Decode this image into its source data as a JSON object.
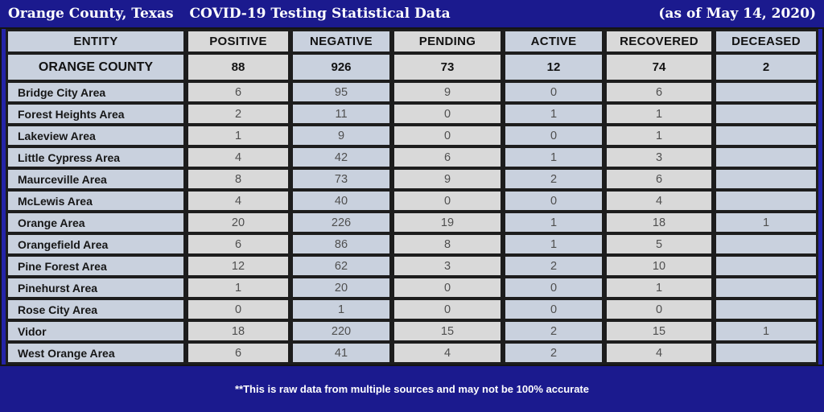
{
  "title": {
    "left_primary": "Orange County, Texas",
    "left_secondary": "COVID-19 Testing Statistical Data",
    "right": "(as of  May 14, 2020)"
  },
  "footer": {
    "note": "**This is raw data from multiple sources and may not be 100% accurate"
  },
  "colors": {
    "background_navy": "#1b1a8e",
    "frame_navy": "#2424a8",
    "grid_black": "#1d1d1d",
    "cell_blue": "#c9d1de",
    "cell_grey": "#d9d9d9",
    "text_dark": "#121212",
    "text_value_grey": "#4f4f4f",
    "text_white": "#ffffff"
  },
  "chart_data": {
    "type": "table",
    "title": "Orange County, Texas COVID-19 Testing Statistical Data (as of May 14, 2020)",
    "columns": [
      "ENTITY",
      "POSITIVE",
      "NEGATIVE",
      "PENDING",
      "ACTIVE",
      "RECOVERED",
      "DECEASED"
    ],
    "total_row": {
      "entity": "ORANGE COUNTY",
      "values": [
        "88",
        "926",
        "73",
        "12",
        "74",
        "2"
      ]
    },
    "rows": [
      {
        "entity": "Bridge City Area",
        "values": [
          "6",
          "95",
          "9",
          "0",
          "6",
          ""
        ]
      },
      {
        "entity": "Forest Heights Area",
        "values": [
          "2",
          "11",
          "0",
          "1",
          "1",
          ""
        ]
      },
      {
        "entity": "Lakeview Area",
        "values": [
          "1",
          "9",
          "0",
          "0",
          "1",
          ""
        ]
      },
      {
        "entity": "Little Cypress Area",
        "values": [
          "4",
          "42",
          "6",
          "1",
          "3",
          ""
        ]
      },
      {
        "entity": "Maurceville Area",
        "values": [
          "8",
          "73",
          "9",
          "2",
          "6",
          ""
        ]
      },
      {
        "entity": "McLewis Area",
        "values": [
          "4",
          "40",
          "0",
          "0",
          "4",
          ""
        ]
      },
      {
        "entity": "Orange Area",
        "values": [
          "20",
          "226",
          "19",
          "1",
          "18",
          "1"
        ]
      },
      {
        "entity": "Orangefield Area",
        "values": [
          "6",
          "86",
          "8",
          "1",
          "5",
          ""
        ]
      },
      {
        "entity": "Pine Forest Area",
        "values": [
          "12",
          "62",
          "3",
          "2",
          "10",
          ""
        ]
      },
      {
        "entity": "Pinehurst Area",
        "values": [
          "1",
          "20",
          "0",
          "0",
          "1",
          ""
        ]
      },
      {
        "entity": "Rose City Area",
        "values": [
          "0",
          "1",
          "0",
          "0",
          "0",
          ""
        ]
      },
      {
        "entity": "Vidor",
        "values": [
          "18",
          "220",
          "15",
          "2",
          "15",
          "1"
        ]
      },
      {
        "entity": "West Orange Area",
        "values": [
          "6",
          "41",
          "4",
          "2",
          "4",
          ""
        ]
      }
    ],
    "layout": {
      "grid": true,
      "column_tint_alternation": [
        "blue",
        "grey",
        "blue",
        "grey",
        "blue",
        "grey",
        "blue"
      ]
    }
  }
}
